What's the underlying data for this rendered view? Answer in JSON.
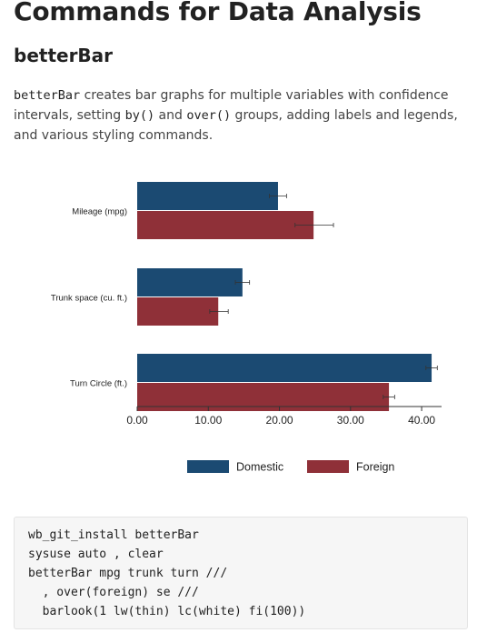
{
  "page": {
    "title": "Commands for Data Analysis",
    "subtitle": "betterBar",
    "description": {
      "cmd": "betterBar",
      "text1": " creates bar graphs for multiple variables with confidence intervals, setting ",
      "code1": "by()",
      "text2": " and ",
      "code2": "over()",
      "text3": " groups, adding labels and legends, and various styling commands."
    }
  },
  "colors": {
    "domestic": "#1b4a72",
    "foreign": "#8f3038"
  },
  "chart_data": {
    "type": "bar",
    "orientation": "horizontal",
    "categories": [
      "Mileage (mpg)",
      "Trunk space (cu. ft.)",
      "Turn Circle (ft.)"
    ],
    "series": [
      {
        "name": "Domestic",
        "values": [
          19.8,
          14.8,
          41.4
        ],
        "ci_low": [
          18.6,
          13.8,
          40.6
        ],
        "ci_high": [
          21.0,
          15.8,
          42.2
        ]
      },
      {
        "name": "Foreign",
        "values": [
          24.8,
          11.4,
          35.4
        ],
        "ci_low": [
          22.2,
          10.2,
          34.6
        ],
        "ci_high": [
          27.6,
          12.8,
          36.2
        ]
      }
    ],
    "xlim": [
      0,
      42.8
    ],
    "xticks": [
      "0.00",
      "10.00",
      "20.00",
      "30.00",
      "40.00"
    ],
    "xtick_values": [
      0,
      10,
      20,
      30,
      40
    ],
    "legend_position": "bottom",
    "grid": false
  },
  "code": {
    "lines": [
      "wb_git_install betterBar",
      "sysuse auto , clear",
      "betterBar mpg trunk turn ///",
      "  , over(foreign) se ///",
      "  barlook(1 lw(thin) lc(white) fi(100))"
    ]
  }
}
